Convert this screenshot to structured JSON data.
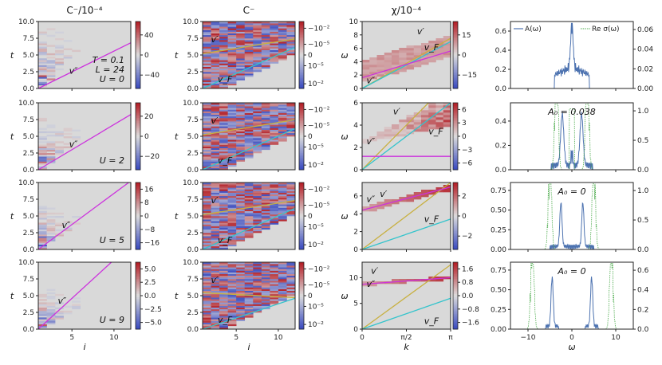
{
  "chart_data": {
    "type": "heatmap",
    "columns": [
      {
        "id": "c1",
        "title": "C⁻/10⁻⁴",
        "xlabel": "i",
        "ylabel": "t",
        "xlim": [
          1,
          12
        ],
        "ylim": [
          0,
          10
        ],
        "xticks": [
          "5",
          "10"
        ],
        "yticks": [
          "0.0",
          "2.5",
          "5.0",
          "7.5",
          "10.0"
        ]
      },
      {
        "id": "c2",
        "title": "C⁻",
        "xlabel": "i",
        "ylabel": "t",
        "xlim": [
          1,
          12
        ],
        "ylim": [
          0,
          10
        ],
        "xticks": [
          "5",
          "10"
        ],
        "yticks": [
          "0.0",
          "2.5",
          "5.0",
          "7.5",
          "10.0"
        ]
      },
      {
        "id": "c3",
        "title": "χ/10⁻⁴",
        "xlabel": "k",
        "ylabel": "ω",
        "xlim": [
          0,
          3.1416
        ],
        "xticks": [
          "0",
          "π/2",
          "π"
        ]
      },
      {
        "id": "c4",
        "xlabel": "ω",
        "xlim": [
          -14,
          14
        ],
        "xticks": [
          "−10",
          "0",
          "10"
        ],
        "legend": [
          "A(ω)",
          "Re σ(ω)"
        ]
      }
    ],
    "rows": [
      {
        "U_label": "U = 0",
        "params": [
          "T = 0.1",
          "L = 24"
        ],
        "c1_cbar": [
          "40",
          "0",
          "−40"
        ],
        "c2_cbar": [
          "10⁻²",
          "10⁻⁵",
          "0",
          "−10⁻⁵",
          "−10⁻²"
        ],
        "c3_ylim": [
          0,
          10
        ],
        "c3_yticks": [
          "0",
          "2",
          "4",
          "6",
          "8",
          "10"
        ],
        "c3_cbar": [
          "15",
          "0",
          "−15"
        ],
        "c4_A0": "",
        "c4_ylim_left": [
          0,
          0.7
        ],
        "c4_yticks_left": [
          "0.0",
          "0.2",
          "0.4",
          "0.6"
        ],
        "c4_yticks_right": [
          "0.00",
          "0.02",
          "0.04",
          "0.06"
        ]
      },
      {
        "U_label": "U = 2",
        "params": [],
        "c1_cbar": [
          "20",
          "0",
          "−20"
        ],
        "c2_cbar": [
          "10⁻²",
          "10⁻⁵",
          "0",
          "−10⁻⁵",
          "−10⁻²"
        ],
        "c3_ylim": [
          0,
          6
        ],
        "c3_yticks": [
          "0",
          "2",
          "4",
          "6"
        ],
        "c3_cbar": [
          "6",
          "3",
          "0",
          "−3",
          "−6"
        ],
        "c4_A0": "A₀ = 0.038",
        "c4_ylim_left": [
          0,
          0.55
        ],
        "c4_yticks_left": [
          "0.0",
          "0.2",
          "0.4"
        ],
        "c4_yticks_right": [
          "0.0",
          "0.5",
          "1.0"
        ]
      },
      {
        "U_label": "U = 5",
        "params": [],
        "c1_cbar": [
          "16",
          "8",
          "0",
          "−8",
          "−16"
        ],
        "c2_cbar": [
          "10⁻²",
          "10⁻⁵",
          "0",
          "−10⁻⁵",
          "−10⁻²"
        ],
        "c3_ylim": [
          0,
          7.5
        ],
        "c3_yticks": [
          "0",
          "2",
          "4",
          "6"
        ],
        "c3_cbar": [
          "2",
          "0",
          "−2"
        ],
        "c4_A0": "A₀ = 0",
        "c4_ylim_left": [
          0,
          0.85
        ],
        "c4_yticks_left": [
          "0.00",
          "0.25",
          "0.50",
          "0.75"
        ],
        "c4_yticks_right": [
          "0.0",
          "0.5",
          "1.0"
        ]
      },
      {
        "U_label": "U = 9",
        "params": [],
        "c1_cbar": [
          "5.0",
          "2.5",
          "0.0",
          "−2.5",
          "−5.0"
        ],
        "c2_cbar": [
          "10⁻²",
          "10⁻⁵",
          "0",
          "−10⁻⁵",
          "−10⁻²"
        ],
        "c3_ylim": [
          0,
          13
        ],
        "c3_yticks": [
          "0",
          "5",
          "10"
        ],
        "c3_cbar": [
          "1.6",
          "0.8",
          "0.0",
          "−0.8",
          "−1.6"
        ],
        "c4_A0": "A₀ = 0",
        "c4_ylim_left": [
          0,
          0.85
        ],
        "c4_yticks_left": [
          "0.00",
          "0.25",
          "0.50",
          "0.75"
        ],
        "c4_yticks_right": [
          "0.0",
          "0.2",
          "0.4",
          "0.6"
        ]
      }
    ],
    "velocity_labels": {
      "vpp": "v″",
      "vp": "v′",
      "vF": "v_F"
    },
    "line_slopes": {
      "c1_vpp": [
        0.62,
        0.75,
        0.93,
        1.15
      ],
      "c2_vp": [
        0.63,
        0.65,
        0.6,
        0.2
      ],
      "c2_vF": [
        0.33,
        0.33,
        0.33,
        0.33
      ],
      "c3": [
        {
          "vp": [
            2.6,
            7.5
          ],
          "vF": [
            2.0,
            7.0
          ],
          "vpp": [
            1.6,
            5.6
          ]
        },
        {
          "vp": [
            2.2,
            8.0
          ],
          "vF": [
            1.7,
            6.0
          ],
          "vpp": [
            1.2,
            1.2
          ]
        },
        {
          "vp": [
            2.5,
            7.5
          ],
          "vF": [
            0.9,
            3.4
          ],
          "vpp": [
            4.4,
            7.0
          ]
        },
        {
          "vp": [
            4.0,
            12.5
          ],
          "vF": [
            2.0,
            6.0
          ],
          "vpp": [
            8.7,
            10.0
          ]
        }
      ]
    },
    "colors": {
      "magenta": "#cc33dd",
      "olive": "#c8b040",
      "cyan": "#33c4cc",
      "blue": "#4c72b0",
      "green": "#4aaa4a",
      "grey": "#d9d9d9"
    }
  }
}
